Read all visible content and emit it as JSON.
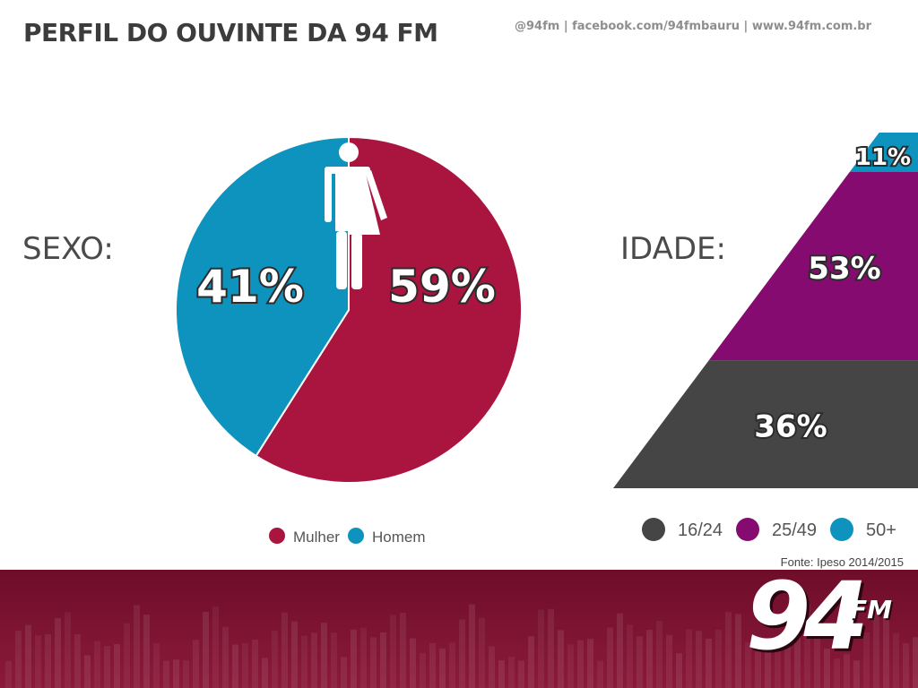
{
  "header": {
    "title": "PERFIL DO OUVINTE DA 94 FM",
    "contacts": "@94fm | facebook.com/94fmbauru | www.94fm.com.br"
  },
  "sections": {
    "sexo_label": "SEXO:",
    "idade_label": "IDADE:"
  },
  "chart_data": [
    {
      "type": "pie",
      "title": "SEXO:",
      "categories": [
        "Mulher",
        "Homem"
      ],
      "values": [
        59,
        41
      ],
      "labels": [
        "59%",
        "41%"
      ],
      "colors": [
        "#aa1540",
        "#0d93bd"
      ],
      "legend": [
        "Mulher",
        "Homem"
      ],
      "legend_position": "bottom"
    },
    {
      "type": "bar",
      "title": "IDADE:",
      "categories": [
        "16/24",
        "25/49",
        "50+"
      ],
      "values": [
        36,
        53,
        11
      ],
      "labels": [
        "36%",
        "53%",
        "11%"
      ],
      "colors": [
        "#454545",
        "#860b70",
        "#0d93bd"
      ],
      "legend": [
        "16/24",
        "25/49",
        "50+"
      ],
      "legend_position": "bottom"
    }
  ],
  "source": "Fonte: Ipeso 2014/2015",
  "logo": {
    "number": "94",
    "suffix": "FM"
  },
  "icons": {
    "gender": "male-female-figure-icon"
  }
}
